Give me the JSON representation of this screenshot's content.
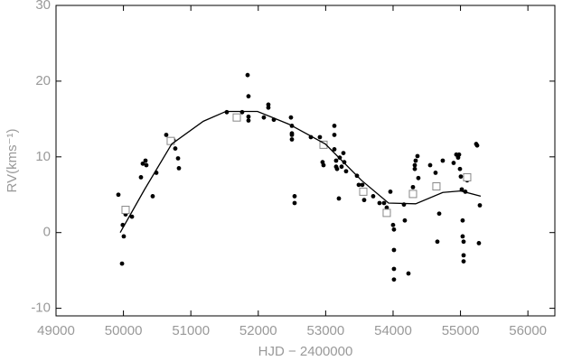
{
  "chart_data": {
    "type": "scatter",
    "xlabel": "HJD − 2400000",
    "ylabel": "RV(kms⁻¹)",
    "xlim": [
      49000,
      56400
    ],
    "ylim": [
      -11,
      30
    ],
    "xticks": [
      49000,
      50000,
      51000,
      52000,
      53000,
      54000,
      55000,
      56000
    ],
    "yticks": [
      -10,
      0,
      10,
      20,
      30
    ],
    "series": [
      {
        "marker": "dot",
        "color": "#000000",
        "x": [
          49925,
          49979,
          49990,
          50005,
          50032,
          50126,
          50260,
          50287,
          50327,
          50340,
          50434,
          50488,
          50635,
          50743,
          50769,
          50810,
          50823,
          51533,
          51761,
          51842,
          51855,
          51855,
          51855,
          52083,
          52150,
          52150,
          52231,
          52485,
          52499,
          52499,
          52499,
          52499,
          52539,
          52539,
          52780,
          52914,
          52954,
          52968,
          53129,
          53129,
          53129,
          53155,
          53155,
          53169,
          53196,
          53209,
          53236,
          53263,
          53276,
          53303,
          53464,
          53491,
          53544,
          53584,
          53571,
          53705,
          53799,
          53866,
          53906,
          53933,
          53960,
          54000,
          54013,
          54013,
          54013,
          54013,
          54161,
          54174,
          54228,
          54295,
          54322,
          54335,
          54362,
          54322,
          54375,
          54550,
          54630,
          54657,
          54684,
          54737,
          54898,
          54938,
          54965,
          54979,
          54992,
          55005,
          55019,
          55032,
          55032,
          55046,
          55046,
          55046,
          55072,
          55099,
          55233,
          55247,
          55273,
          55287
        ],
        "y": [
          5.0,
          -4.1,
          1.0,
          -0.5,
          2.4,
          2.1,
          7.3,
          9.1,
          9.5,
          8.9,
          4.8,
          7.9,
          12.9,
          12.2,
          11.1,
          9.8,
          8.5,
          15.9,
          15.9,
          20.8,
          18.0,
          15.3,
          14.8,
          15.2,
          16.5,
          16.9,
          14.9,
          15.2,
          14.1,
          13.1,
          12.9,
          12.3,
          4.8,
          3.9,
          12.6,
          12.6,
          9.3,
          8.9,
          14.1,
          12.9,
          11.0,
          9.5,
          8.7,
          8.4,
          4.5,
          9.9,
          8.7,
          10.5,
          9.3,
          8.1,
          7.5,
          6.3,
          6.3,
          5.5,
          4.3,
          4.8,
          3.9,
          3.9,
          3.3,
          2.7,
          5.4,
          1.0,
          0.4,
          -2.3,
          -4.8,
          -6.2,
          3.7,
          1.6,
          -5.4,
          6.0,
          8.4,
          9.5,
          10.1,
          8.9,
          7.2,
          8.9,
          7.9,
          -1.2,
          2.5,
          9.5,
          9.2,
          10.3,
          9.9,
          10.3,
          8.4,
          7.4,
          5.7,
          1.6,
          -0.5,
          -1.2,
          -3.0,
          -3.8,
          5.4,
          6.9,
          11.7,
          11.5,
          -1.4,
          3.6
        ]
      },
      {
        "marker": "square",
        "color": "#888888",
        "x": [
          50032,
          50702,
          51681,
          52968,
          53558,
          53906,
          54295,
          54643,
          55099
        ],
        "y": [
          3.0,
          12.1,
          15.2,
          11.6,
          5.4,
          2.6,
          5.1,
          6.1,
          7.3
        ]
      },
      {
        "marker": "line",
        "color": "#000000",
        "x": [
          49952,
          50314,
          50716,
          51185,
          51520,
          51989,
          52458,
          52995,
          53531,
          53933,
          54335,
          54737,
          55005,
          55300
        ],
        "y": [
          0,
          5.7,
          11.7,
          14.7,
          16.0,
          16.0,
          14.3,
          11.7,
          6.9,
          3.9,
          3.8,
          5.3,
          5.5,
          4.8
        ]
      }
    ]
  }
}
